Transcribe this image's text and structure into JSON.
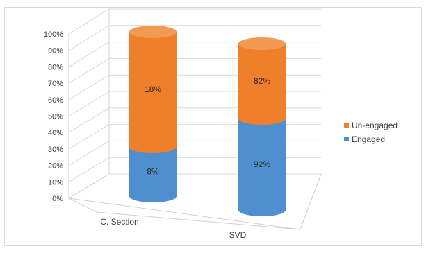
{
  "chart_data": {
    "type": "bar",
    "variant": "100%-stacked-3d-cylinder",
    "title": "",
    "xlabel": "",
    "ylabel": "",
    "ylim": [
      0,
      100
    ],
    "yticks": [
      "0%",
      "10%",
      "20%",
      "30%",
      "40%",
      "50%",
      "60%",
      "70%",
      "80%",
      "90%",
      "100%"
    ],
    "categories": [
      "C. Section",
      "SVD"
    ],
    "series": [
      {
        "name": "Engaged",
        "color": "#4f8fcf",
        "values": [
          30,
          55
        ],
        "data_labels": [
          "8%",
          "92%"
        ]
      },
      {
        "name": "Un-engaged",
        "color": "#ef7f2a",
        "values": [
          70,
          45
        ],
        "data_labels": [
          "18%",
          "82%"
        ]
      }
    ],
    "grid": true,
    "legend": {
      "position": "right",
      "entries": [
        "Un-engaged",
        "Engaged"
      ]
    }
  }
}
